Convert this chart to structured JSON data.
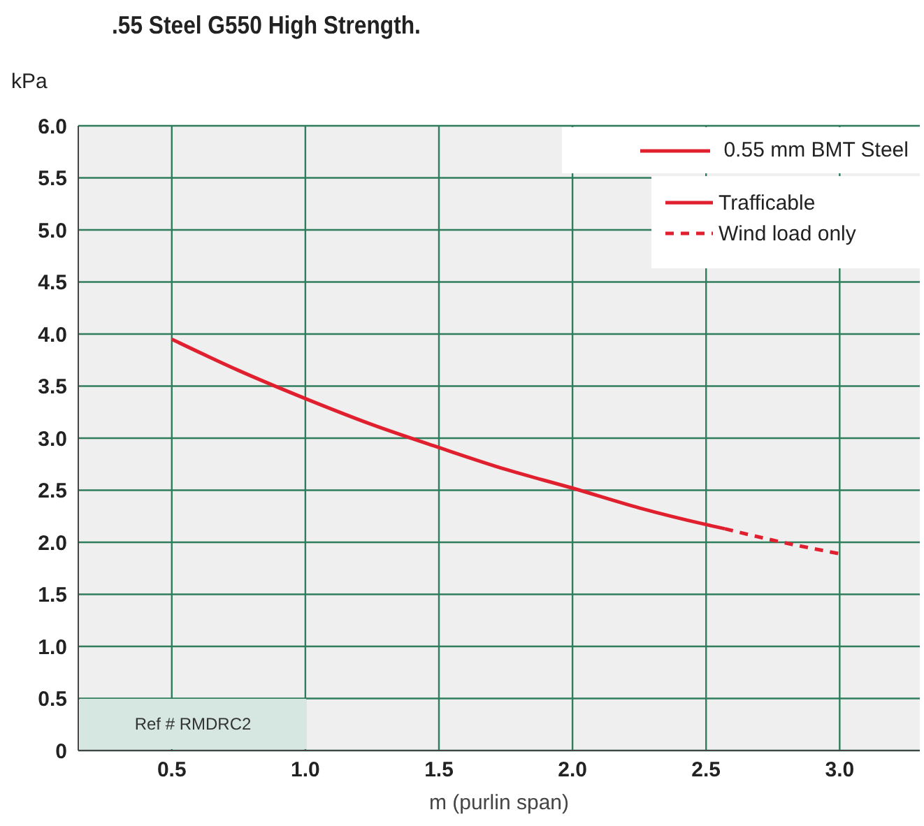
{
  "chart_data": {
    "type": "line",
    "title": ".55 Steel G550 High Strength.",
    "xlabel": "m (purlin span)",
    "ylabel": "kPa",
    "legend_title": "0.55 mm BMT Steel",
    "annotations": [
      "Ref # RMDRC2"
    ],
    "series": [
      {
        "name": "Trafficable",
        "color": "#e0202e",
        "line_style": "solid",
        "x": [
          0.5,
          0.75,
          1.0,
          1.25,
          1.5,
          1.75,
          2.0,
          2.25,
          2.5,
          2.57
        ],
        "values": [
          3.95,
          3.65,
          3.38,
          3.13,
          2.91,
          2.7,
          2.52,
          2.33,
          2.17,
          2.13
        ]
      },
      {
        "name": "Wind load only",
        "color": "#e0202e",
        "line_style": "dashed",
        "x": [
          2.57,
          2.75,
          3.0
        ],
        "values": [
          2.13,
          2.02,
          1.89
        ]
      }
    ],
    "xlim": [
      0.15,
      3.3
    ],
    "xticks": [
      {
        "value": 0.5,
        "label": "0.5"
      },
      {
        "value": 1,
        "label": "1.0"
      },
      {
        "value": 1.5,
        "label": "1.5"
      },
      {
        "value": 2,
        "label": "2.0"
      },
      {
        "value": 2.5,
        "label": "2.5"
      },
      {
        "value": 3,
        "label": "3.0"
      }
    ],
    "ylim": [
      0,
      6
    ],
    "yticks": [
      0,
      0.5,
      {
        "value": 1,
        "label": "1.0"
      },
      1.5,
      {
        "value": 2,
        "label": "2.0"
      },
      2.5,
      {
        "value": 3,
        "label": "3.0"
      },
      3.5,
      {
        "value": 4,
        "label": "4.0"
      },
      4.5,
      {
        "value": 5,
        "label": "5.0"
      },
      5.5,
      {
        "value": 6,
        "label": "6.0"
      }
    ],
    "grid": true,
    "legend": "top right",
    "marker": "none"
  }
}
